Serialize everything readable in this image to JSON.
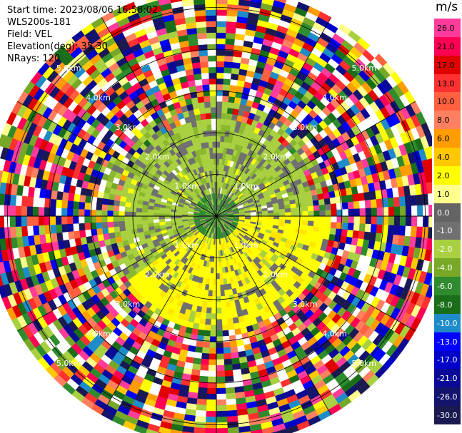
{
  "info": {
    "start_time": "Start time: 2023/08/06 16:58:02",
    "instrument": "WLS200s-181",
    "field": "Field: VEL",
    "elevation": "Elevation(deg): 35.30",
    "nrays": "NRays: 120"
  },
  "colorbar": {
    "unit": "m/s",
    "ticks": [
      "26.0",
      "21.0",
      "17.0",
      "13.0",
      "10.0",
      "8.0",
      "6.0",
      "4.0",
      "2.0",
      "1.0",
      "0.0",
      "-1.0",
      "-2.0",
      "-4.0",
      "-6.0",
      "-8.0",
      "-10.0",
      "-13.0",
      "-17.0",
      "-21.0",
      "-26.0",
      "-30.0"
    ],
    "colors": [
      "#ff3c9c",
      "#ff0054",
      "#e00000",
      "#ff3030",
      "#ff6040",
      "#ff8060",
      "#ff9c00",
      "#ffc800",
      "#ffff00",
      "#ffff8c",
      "#646464",
      "#707070",
      "#a8d040",
      "#78a828",
      "#2e8b2e",
      "#1a6e1a",
      "#1e8cc8",
      "#0000ff",
      "#0000c8",
      "#0a0a96",
      "#14146e",
      "#1a1a50"
    ]
  },
  "range_rings": {
    "labels": [
      "1.0km",
      "2.0km",
      "3.0km",
      "4.0km",
      "5.0km"
    ]
  },
  "chart_data": {
    "type": "heatmap",
    "subtype": "PPI polar radial velocity scan",
    "field": "VEL",
    "nrays": 120,
    "range_km": [
      0,
      5.5
    ],
    "ring_spacing_km": 1.0,
    "value_range": [
      -30,
      26
    ],
    "regions": [
      {
        "range_km": [
          0,
          0.6
        ],
        "azimuth_deg": [
          0,
          360
        ],
        "dominant_value": -4.0
      },
      {
        "range_km": [
          0.3,
          2.8
        ],
        "azimuth_deg": [
          200,
          360
        ],
        "dominant_value": -2.0
      },
      {
        "range_km": [
          0.3,
          2.8
        ],
        "azimuth_deg": [
          0,
          40
        ],
        "dominant_value": -2.0
      },
      {
        "range_km": [
          0.3,
          2.6
        ],
        "azimuth_deg": [
          90,
          230
        ],
        "dominant_value": 2.0
      },
      {
        "range_km": [
          2.8,
          5.5
        ],
        "azimuth_deg": [
          0,
          360
        ],
        "dominant_value": "noise"
      }
    ]
  }
}
